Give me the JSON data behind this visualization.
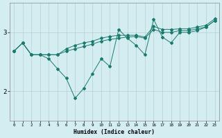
{
  "xlabel": "Humidex (Indice chaleur)",
  "bg_color": "#d4edf0",
  "line_color": "#1a7a6e",
  "grid_color": "#b8cfd4",
  "xlim": [
    -0.5,
    23.5
  ],
  "ylim": [
    1.5,
    3.5
  ],
  "yticks": [
    2,
    3
  ],
  "xticks": [
    0,
    1,
    2,
    3,
    4,
    5,
    6,
    7,
    8,
    9,
    10,
    11,
    12,
    13,
    14,
    15,
    16,
    17,
    18,
    19,
    20,
    21,
    22,
    23
  ],
  "line1": {
    "x": [
      0,
      1,
      2,
      3,
      4,
      5,
      6,
      7,
      8,
      9,
      10,
      11,
      12,
      13,
      14,
      15,
      16,
      17,
      18,
      19,
      20,
      21,
      22,
      23
    ],
    "y": [
      2.68,
      2.82,
      2.62,
      2.62,
      2.62,
      2.62,
      2.68,
      2.72,
      2.76,
      2.8,
      2.85,
      2.88,
      2.9,
      2.92,
      2.93,
      2.9,
      3.05,
      3.0,
      3.0,
      3.03,
      3.03,
      3.06,
      3.09,
      3.2
    ]
  },
  "line2": {
    "x": [
      0,
      1,
      2,
      3,
      4,
      5,
      6,
      7,
      8,
      9,
      10,
      11,
      12,
      13,
      14,
      15,
      16,
      17,
      18,
      19,
      20,
      21,
      22,
      23
    ],
    "y": [
      2.68,
      2.82,
      2.62,
      2.62,
      2.62,
      2.62,
      2.72,
      2.78,
      2.82,
      2.85,
      2.9,
      2.93,
      2.95,
      2.95,
      2.95,
      2.92,
      3.1,
      3.05,
      3.05,
      3.06,
      3.06,
      3.09,
      3.12,
      3.23
    ]
  },
  "line3": {
    "x": [
      0,
      1,
      2,
      3,
      4,
      5,
      6,
      7,
      8,
      9,
      10,
      11,
      12,
      13,
      14,
      15,
      16,
      17,
      18,
      19,
      20,
      21,
      22,
      23
    ],
    "y": [
      2.68,
      2.82,
      2.62,
      2.62,
      2.55,
      2.38,
      2.22,
      1.88,
      2.05,
      2.3,
      2.55,
      2.42,
      3.05,
      2.9,
      2.78,
      2.62,
      3.22,
      2.92,
      2.82,
      3.0,
      3.0,
      3.03,
      3.09,
      3.2
    ]
  }
}
